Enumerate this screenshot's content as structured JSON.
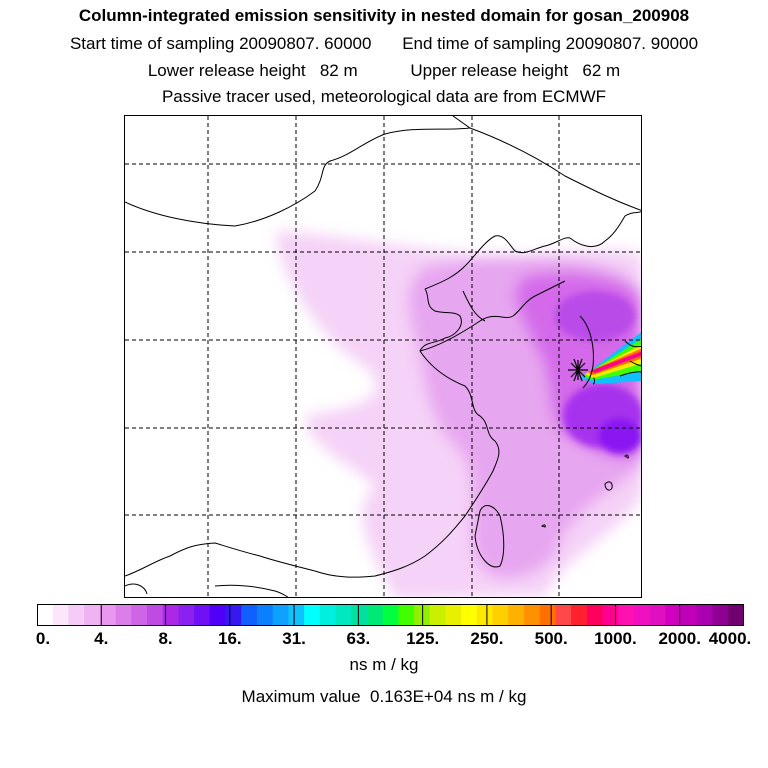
{
  "header": {
    "title": "Column-integrated emission sensitivity in nested domain for gosan_200908",
    "start_label": "Start time of sampling",
    "start_value": "20090807. 60000",
    "end_label": "End time of sampling",
    "end_value": "20090807. 90000",
    "lower_label": "Lower release height",
    "lower_value": "82 m",
    "upper_label": "Upper release height",
    "upper_value": "62 m",
    "note": "Passive tracer used, meteorological data are from ECMWF"
  },
  "map": {
    "release_marker_icon": "asterisk-star-icon",
    "grid": "dashed",
    "plume_color_low": "#f3c9f5",
    "plume_color_mid": "#cc44ee",
    "plume_color_high": "#8a00ff"
  },
  "colorbar": {
    "tick_labels": [
      "0.",
      "4.",
      "8.",
      "16.",
      "31.",
      "63.",
      "125.",
      "250.",
      "500.",
      "1000.",
      "2000.",
      "4000."
    ],
    "colors": [
      "#ffffff",
      "#fbe6fb",
      "#f5ccf7",
      "#efb3f3",
      "#e998ef",
      "#dc7de9",
      "#d064e7",
      "#c04be4",
      "#ad28e6",
      "#8c20ee",
      "#7010f5",
      "#5000f8",
      "#3818f0",
      "#1060ff",
      "#0a80ff",
      "#10a0ff",
      "#10c0ff",
      "#00ffff",
      "#00f0e0",
      "#00e8c0",
      "#00e0a0",
      "#00e878",
      "#00ff40",
      "#40ff00",
      "#90f000",
      "#c8f000",
      "#e8f000",
      "#ffff00",
      "#ffe800",
      "#ffd000",
      "#ffb000",
      "#ff9000",
      "#ff7000",
      "#ff4848",
      "#ff2030",
      "#ff0060",
      "#ff0090",
      "#ff10b0",
      "#f010c0",
      "#e010c0",
      "#d000c0",
      "#c000b8",
      "#a800b0",
      "#900090",
      "#700070"
    ],
    "unit": "ns m / kg"
  },
  "footer": {
    "max_label": "Maximum value",
    "max_value": "0.163E+04 ns m / kg"
  }
}
